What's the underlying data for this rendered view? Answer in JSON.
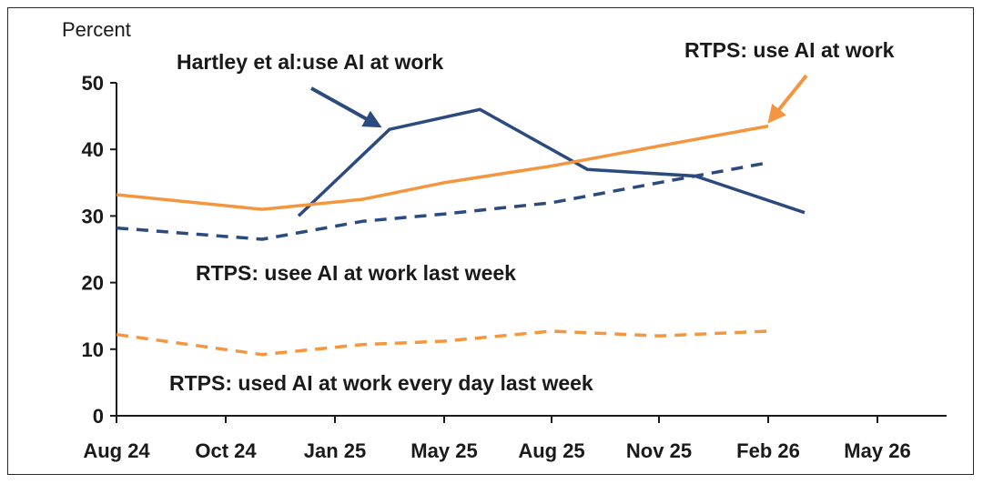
{
  "chart_data": {
    "type": "line",
    "ylabel": "Percent",
    "ylim": [
      0,
      50
    ],
    "yticks": [
      "0",
      "10",
      "20",
      "30",
      "40",
      "50"
    ],
    "xticks": [
      "Aug 24",
      "Oct 24",
      "Jan 25",
      "May 25",
      "Aug 25",
      "Nov 25",
      "Feb 26",
      "May 26"
    ],
    "grid": false,
    "colors": {
      "navy": "#2b4a7e",
      "orange": "#f4963f"
    },
    "series": [
      {
        "name": "Hartley et al:use AI at work",
        "color": "#2b4a7e",
        "style": "solid",
        "points": [
          [
            "Dec 24",
            30
          ],
          [
            "Mar 25",
            43
          ],
          [
            "Jun 25",
            46
          ],
          [
            "Sep 25",
            37
          ],
          [
            "Dec 25",
            36
          ],
          [
            "Mar 26",
            30.5
          ]
        ]
      },
      {
        "name": "RTPS: use AI at work",
        "color": "#f4963f",
        "style": "solid",
        "points": [
          [
            "Aug 24",
            33.2
          ],
          [
            "Nov 24",
            31
          ],
          [
            "Feb 25",
            32.5
          ],
          [
            "May 25",
            35
          ],
          [
            "Aug 25",
            37.5
          ],
          [
            "Nov 25",
            40.5
          ],
          [
            "Feb 26",
            43.5
          ]
        ]
      },
      {
        "name": "RTPS: usee AI at work last week",
        "color": "#2b4a7e",
        "style": "dashed",
        "points": [
          [
            "Aug 24",
            28.2
          ],
          [
            "Nov 24",
            26.5
          ],
          [
            "Feb 25",
            29.2
          ],
          [
            "May 25",
            30.3
          ],
          [
            "Aug 25",
            32
          ],
          [
            "Nov 25",
            35
          ],
          [
            "Feb 26",
            38
          ]
        ]
      },
      {
        "name": "RTPS: used AI at work every day last week",
        "color": "#f4963f",
        "style": "dashed",
        "points": [
          [
            "Aug 24",
            12.2
          ],
          [
            "Nov 24",
            9.2
          ],
          [
            "Feb 25",
            10.7
          ],
          [
            "May 25",
            11.2
          ],
          [
            "Aug 25",
            12.7
          ],
          [
            "Nov 25",
            12
          ],
          [
            "Feb 26",
            12.7
          ]
        ]
      }
    ],
    "annotations": [
      {
        "text": "Hartley et al:use AI at work",
        "arrow_to": [
          "Mar 25",
          43
        ]
      },
      {
        "text": "RTPS: use AI at work",
        "arrow_to": [
          "Feb 26",
          43.5
        ]
      },
      {
        "text": "RTPS: usee AI at work last week"
      },
      {
        "text": "RTPS: used AI at work every day last week"
      }
    ]
  }
}
